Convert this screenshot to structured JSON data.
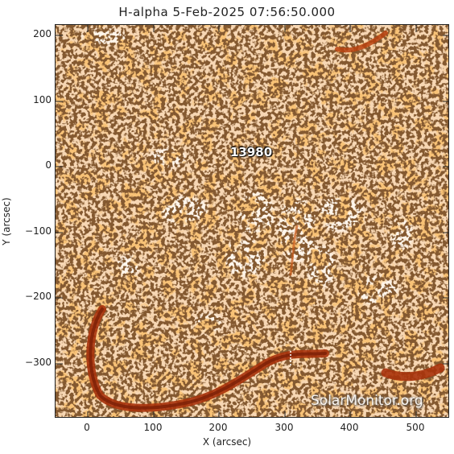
{
  "title": "H-alpha  5-Feb-2025 07:56:50.000",
  "x_axis": {
    "label": "X (arcsec)",
    "ticks": [
      "0",
      "100",
      "200",
      "300",
      "400",
      "500"
    ],
    "range": [
      -55,
      545
    ]
  },
  "y_axis": {
    "label": "Y (arcsec)",
    "ticks": [
      "200",
      "100",
      "0",
      "−100",
      "−200",
      "−300"
    ],
    "range": [
      -385,
      215
    ]
  },
  "active_region": "13980",
  "watermark": "SolarMonitor.org",
  "colors": {
    "background": "#f7d7b4",
    "plage": "#fff6ec",
    "texture": "#f08a2e",
    "dark_grain": "#3a1a08",
    "filament": "#a8330c"
  }
}
